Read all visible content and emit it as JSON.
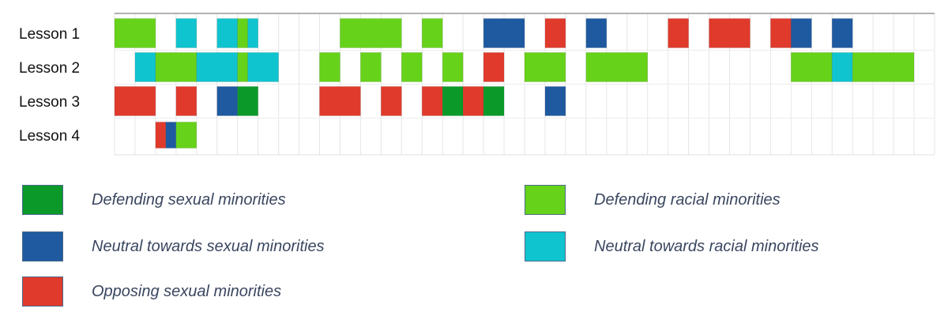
{
  "chart_data": {
    "type": "timeline",
    "rows": [
      "Lesson 1",
      "Lesson 2",
      "Lesson 3",
      "Lesson 4"
    ],
    "x_units": "grid column",
    "x_range": [
      0,
      40
    ],
    "grid": true,
    "legend_placement": "bottom",
    "categories": [
      {
        "key": "def_sexual",
        "label": "Defending sexual minorities",
        "color": "#0b9a2a"
      },
      {
        "key": "neu_sexual",
        "label": "Neutral towards sexual minorities",
        "color": "#1f5aa0"
      },
      {
        "key": "opp_sexual",
        "label": "Opposing sexual minorities",
        "color": "#e03a2c"
      },
      {
        "key": "def_racial",
        "label": "Defending racial minorities",
        "color": "#66d21a"
      },
      {
        "key": "neu_racial",
        "label": "Neutral towards racial minorities",
        "color": "#10c4cf"
      }
    ],
    "segments": [
      {
        "row": 0,
        "start": 0,
        "end": 2,
        "cat": "def_racial"
      },
      {
        "row": 0,
        "start": 3,
        "end": 4,
        "cat": "neu_racial"
      },
      {
        "row": 0,
        "start": 5,
        "end": 6,
        "cat": "neu_racial"
      },
      {
        "row": 0,
        "start": 6,
        "end": 6.5,
        "cat": "def_racial"
      },
      {
        "row": 0,
        "start": 6.5,
        "end": 7,
        "cat": "neu_racial"
      },
      {
        "row": 0,
        "start": 11,
        "end": 14,
        "cat": "def_racial"
      },
      {
        "row": 0,
        "start": 15,
        "end": 16,
        "cat": "def_racial"
      },
      {
        "row": 0,
        "start": 18,
        "end": 20,
        "cat": "neu_sexual"
      },
      {
        "row": 0,
        "start": 21,
        "end": 22,
        "cat": "opp_sexual"
      },
      {
        "row": 0,
        "start": 23,
        "end": 24,
        "cat": "neu_sexual"
      },
      {
        "row": 0,
        "start": 27,
        "end": 28,
        "cat": "opp_sexual"
      },
      {
        "row": 0,
        "start": 29,
        "end": 31,
        "cat": "opp_sexual"
      },
      {
        "row": 0,
        "start": 32,
        "end": 33,
        "cat": "opp_sexual"
      },
      {
        "row": 0,
        "start": 33,
        "end": 34,
        "cat": "neu_sexual"
      },
      {
        "row": 0,
        "start": 35,
        "end": 36,
        "cat": "neu_sexual"
      },
      {
        "row": 1,
        "start": 1,
        "end": 2,
        "cat": "neu_racial"
      },
      {
        "row": 1,
        "start": 2,
        "end": 4,
        "cat": "def_racial"
      },
      {
        "row": 1,
        "start": 4,
        "end": 6,
        "cat": "neu_racial"
      },
      {
        "row": 1,
        "start": 6,
        "end": 6.5,
        "cat": "def_racial"
      },
      {
        "row": 1,
        "start": 6.5,
        "end": 8,
        "cat": "neu_racial"
      },
      {
        "row": 1,
        "start": 10,
        "end": 11,
        "cat": "def_racial"
      },
      {
        "row": 1,
        "start": 12,
        "end": 13,
        "cat": "def_racial"
      },
      {
        "row": 1,
        "start": 14,
        "end": 15,
        "cat": "def_racial"
      },
      {
        "row": 1,
        "start": 16,
        "end": 17,
        "cat": "def_racial"
      },
      {
        "row": 1,
        "start": 18,
        "end": 19,
        "cat": "opp_sexual"
      },
      {
        "row": 1,
        "start": 20,
        "end": 22,
        "cat": "def_racial"
      },
      {
        "row": 1,
        "start": 23,
        "end": 26,
        "cat": "def_racial"
      },
      {
        "row": 1,
        "start": 33,
        "end": 35,
        "cat": "def_racial"
      },
      {
        "row": 1,
        "start": 35,
        "end": 36,
        "cat": "neu_racial"
      },
      {
        "row": 1,
        "start": 36,
        "end": 39,
        "cat": "def_racial"
      },
      {
        "row": 2,
        "start": 0,
        "end": 2,
        "cat": "opp_sexual"
      },
      {
        "row": 2,
        "start": 3,
        "end": 4,
        "cat": "opp_sexual"
      },
      {
        "row": 2,
        "start": 5,
        "end": 6,
        "cat": "neu_sexual"
      },
      {
        "row": 2,
        "start": 6,
        "end": 7,
        "cat": "def_sexual"
      },
      {
        "row": 2,
        "start": 10,
        "end": 12,
        "cat": "opp_sexual"
      },
      {
        "row": 2,
        "start": 13,
        "end": 14,
        "cat": "opp_sexual"
      },
      {
        "row": 2,
        "start": 15,
        "end": 16,
        "cat": "opp_sexual"
      },
      {
        "row": 2,
        "start": 16,
        "end": 17,
        "cat": "def_sexual"
      },
      {
        "row": 2,
        "start": 17,
        "end": 18,
        "cat": "opp_sexual"
      },
      {
        "row": 2,
        "start": 18,
        "end": 19,
        "cat": "def_sexual"
      },
      {
        "row": 2,
        "start": 21,
        "end": 22,
        "cat": "neu_sexual"
      },
      {
        "row": 3,
        "start": 2,
        "end": 2.5,
        "cat": "opp_sexual"
      },
      {
        "row": 3,
        "start": 2.5,
        "end": 3,
        "cat": "neu_sexual"
      },
      {
        "row": 3,
        "start": 3,
        "end": 4,
        "cat": "def_racial"
      }
    ]
  },
  "legend": {
    "items": [
      {
        "key": "def_sexual",
        "label": "Defending sexual minorities"
      },
      {
        "key": "neu_sexual",
        "label": "Neutral towards sexual minorities"
      },
      {
        "key": "opp_sexual",
        "label": "Opposing sexual minorities"
      },
      {
        "key": "def_racial",
        "label": "Defending racial minorities"
      },
      {
        "key": "neu_racial",
        "label": "Neutral towards racial minorities"
      }
    ]
  }
}
